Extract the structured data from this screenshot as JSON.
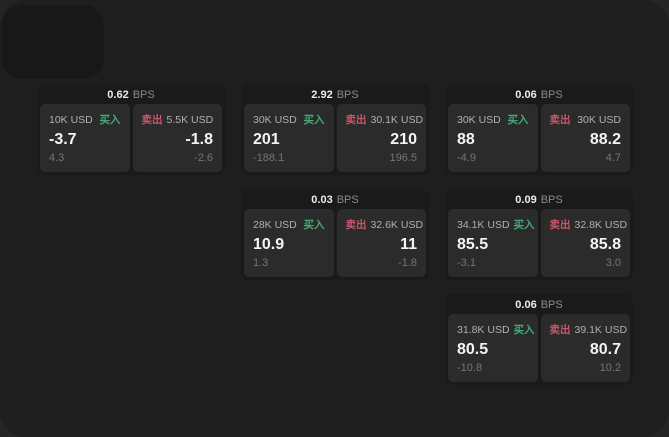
{
  "labels": {
    "bps_suffix": "BPS",
    "buy": "买入",
    "sell": "卖出"
  },
  "colors": {
    "buy": "#44aa77",
    "sell": "#c9566a",
    "canvas": "#1e1e1e",
    "card": "#1a1a1a",
    "panel": "#2b2b2b"
  },
  "cards": [
    {
      "row": 1,
      "col": 1,
      "bps": "0.62",
      "buy": {
        "amount": "10K USD",
        "price": "-3.7",
        "delta": "4.3"
      },
      "sell": {
        "amount": "5.5K USD",
        "price": "-1.8",
        "delta": "-2.6"
      }
    },
    {
      "row": 1,
      "col": 2,
      "bps": "2.92",
      "buy": {
        "amount": "30K USD",
        "price": "201",
        "delta": "-188.1"
      },
      "sell": {
        "amount": "30.1K USD",
        "price": "210",
        "delta": "196.5"
      }
    },
    {
      "row": 1,
      "col": 3,
      "bps": "0.06",
      "buy": {
        "amount": "30K USD",
        "price": "88",
        "delta": "-4.9"
      },
      "sell": {
        "amount": "30K USD",
        "price": "88.2",
        "delta": "4.7"
      }
    },
    {
      "row": 2,
      "col": 2,
      "bps": "0.03",
      "buy": {
        "amount": "28K USD",
        "price": "10.9",
        "delta": "1.3"
      },
      "sell": {
        "amount": "32.6K USD",
        "price": "11",
        "delta": "-1.8"
      }
    },
    {
      "row": 2,
      "col": 3,
      "bps": "0.09",
      "buy": {
        "amount": "34.1K USD",
        "price": "85.5",
        "delta": "-3.1"
      },
      "sell": {
        "amount": "32.8K USD",
        "price": "85.8",
        "delta": "3.0"
      }
    },
    {
      "row": 3,
      "col": 3,
      "bps": "0.06",
      "buy": {
        "amount": "31.8K USD",
        "price": "80.5",
        "delta": "-10.8"
      },
      "sell": {
        "amount": "39.1K USD",
        "price": "80.7",
        "delta": "10.2"
      }
    }
  ]
}
